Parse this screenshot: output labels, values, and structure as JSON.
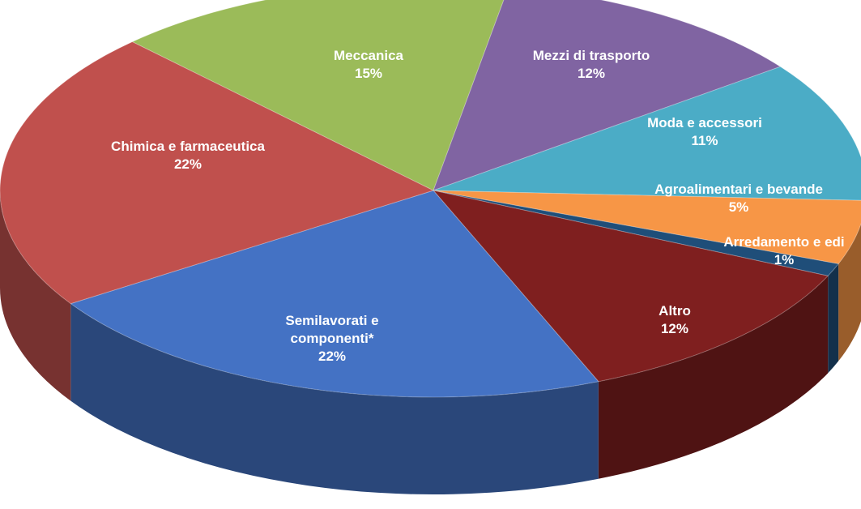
{
  "chart_data": {
    "type": "pie",
    "categories": [
      "Meccanica",
      "Mezzi di trasporto",
      "Moda e accessori",
      "Agroalimentari e bevande",
      "Arredamento e edi",
      "Altro",
      "Semilavorati e componenti*",
      "Chimica e farmaceutica"
    ],
    "values": [
      15,
      12,
      11,
      5,
      1,
      12,
      22,
      22
    ],
    "value_labels": [
      "15%",
      "12%",
      "11%",
      "5%",
      "1%",
      "12%",
      "22%",
      "22%"
    ],
    "colors": [
      "#9bbb59",
      "#8064a2",
      "#4bacc6",
      "#f79646",
      "#1f4e79",
      "#7f1f1f",
      "#4472c4",
      "#c0504d"
    ]
  }
}
